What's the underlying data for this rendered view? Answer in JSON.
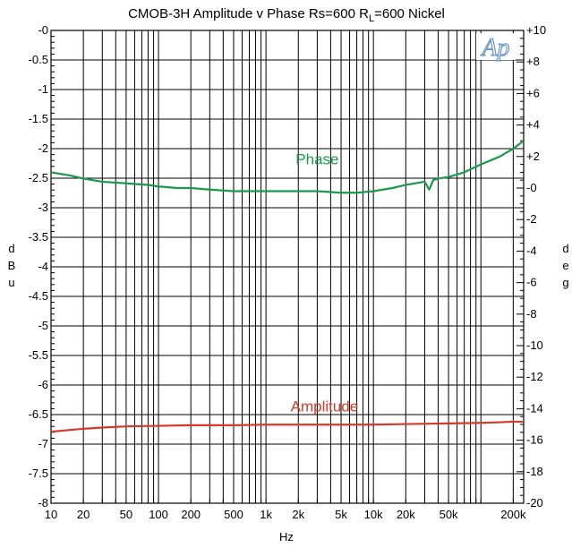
{
  "chart_data": {
    "type": "line",
    "title_main": "CMOB-3H   Amplitude v Phase Rs=600 R",
    "title_sub": "L",
    "title_end": "=600  Nickel",
    "logo_text": "Ap",
    "xlabel": "Hz",
    "ylabel_left": [
      "d",
      "B",
      "u"
    ],
    "ylabel_right": [
      "d",
      "e",
      "g"
    ],
    "x_scale": "log",
    "xlim": [
      10,
      250000
    ],
    "ylim_left": [
      -8,
      0
    ],
    "ylim_right": [
      -20,
      10
    ],
    "grid": true,
    "x_ticks": [
      {
        "value": 10,
        "label": "10"
      },
      {
        "value": 20,
        "label": "20"
      },
      {
        "value": 50,
        "label": "50"
      },
      {
        "value": 100,
        "label": "100"
      },
      {
        "value": 200,
        "label": "200"
      },
      {
        "value": 500,
        "label": "500"
      },
      {
        "value": 1000,
        "label": "1k"
      },
      {
        "value": 2000,
        "label": "2k"
      },
      {
        "value": 5000,
        "label": "5k"
      },
      {
        "value": 10000,
        "label": "10k"
      },
      {
        "value": 20000,
        "label": "20k"
      },
      {
        "value": 50000,
        "label": "50k"
      },
      {
        "value": 200000,
        "label": "200k"
      }
    ],
    "y_ticks_left": [
      {
        "value": 0,
        "label": "-0"
      },
      {
        "value": -0.5,
        "label": "-0.5"
      },
      {
        "value": -1,
        "label": "-1"
      },
      {
        "value": -1.5,
        "label": "-1.5"
      },
      {
        "value": -2,
        "label": "-2"
      },
      {
        "value": -2.5,
        "label": "-2.5"
      },
      {
        "value": -3,
        "label": "-3"
      },
      {
        "value": -3.5,
        "label": "-3.5"
      },
      {
        "value": -4,
        "label": "-4"
      },
      {
        "value": -4.5,
        "label": "-4.5"
      },
      {
        "value": -5,
        "label": "-5"
      },
      {
        "value": -5.5,
        "label": "-5.5"
      },
      {
        "value": -6,
        "label": "-6"
      },
      {
        "value": -6.5,
        "label": "-6.5"
      },
      {
        "value": -7,
        "label": "-7"
      },
      {
        "value": -7.5,
        "label": "-7.5"
      },
      {
        "value": -8,
        "label": "-8"
      }
    ],
    "y_ticks_right": [
      {
        "value": 10,
        "label": "+10"
      },
      {
        "value": 8,
        "label": "+8"
      },
      {
        "value": 6,
        "label": "+6"
      },
      {
        "value": 4,
        "label": "+4"
      },
      {
        "value": 2,
        "label": "+2"
      },
      {
        "value": 0,
        "label": "-0"
      },
      {
        "value": -2,
        "label": "-2"
      },
      {
        "value": -4,
        "label": "-4"
      },
      {
        "value": -6,
        "label": "-6"
      },
      {
        "value": -8,
        "label": "-8"
      },
      {
        "value": -10,
        "label": "-10"
      },
      {
        "value": -12,
        "label": "-12"
      },
      {
        "value": -14,
        "label": "-14"
      },
      {
        "value": -16,
        "label": "-16"
      },
      {
        "value": -18,
        "label": "-18"
      },
      {
        "value": -20,
        "label": "-20"
      }
    ],
    "series": [
      {
        "name": "Phase",
        "axis": "right",
        "color": "#1a9a4a",
        "label_at": [
          3000,
          1.5
        ],
        "x": [
          10,
          15,
          20,
          30,
          50,
          80,
          100,
          150,
          200,
          300,
          500,
          1000,
          2000,
          3000,
          5000,
          7000,
          10000,
          15000,
          20000,
          30000,
          33000,
          36000,
          40000,
          50000,
          70000,
          100000,
          150000,
          200000,
          250000
        ],
        "y": [
          1.0,
          0.8,
          0.6,
          0.4,
          0.3,
          0.2,
          0.1,
          0.0,
          0.0,
          -0.1,
          -0.2,
          -0.2,
          -0.2,
          -0.2,
          -0.3,
          -0.3,
          -0.2,
          0.0,
          0.2,
          0.4,
          -0.1,
          0.5,
          0.6,
          0.7,
          1.0,
          1.5,
          2.0,
          2.5,
          3.0
        ]
      },
      {
        "name": "Amplitude",
        "axis": "left",
        "color": "#d63a2a",
        "label_at": [
          3500,
          -6.45
        ],
        "x": [
          10,
          15,
          20,
          30,
          50,
          100,
          200,
          500,
          1000,
          2000,
          5000,
          10000,
          20000,
          50000,
          100000,
          150000,
          200000,
          250000
        ],
        "y": [
          -6.79,
          -6.76,
          -6.74,
          -6.72,
          -6.7,
          -6.69,
          -6.68,
          -6.68,
          -6.67,
          -6.67,
          -6.67,
          -6.67,
          -6.66,
          -6.65,
          -6.64,
          -6.63,
          -6.62,
          -6.62
        ]
      }
    ]
  }
}
